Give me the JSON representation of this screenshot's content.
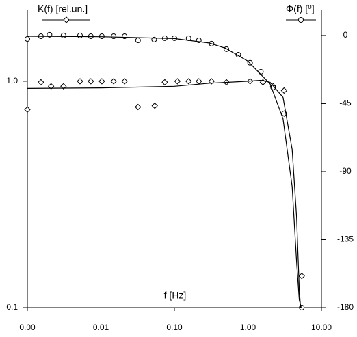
{
  "chart_data": {
    "type": "scatter",
    "x_label": "f [Hz]",
    "xscale": "log",
    "xlim": [
      0.001,
      10
    ],
    "xticks": [
      {
        "value": 0.001,
        "label": "0.00"
      },
      {
        "value": 0.01,
        "label": "0.01"
      },
      {
        "value": 0.1,
        "label": "0.10"
      },
      {
        "value": 1,
        "label": "1.00"
      },
      {
        "value": 10,
        "label": "10.00"
      }
    ],
    "yscale": "log",
    "ylim": [
      0.1,
      2.06
    ],
    "yticks": [
      0.1,
      {
        "value": 1,
        "label": "1.0"
      }
    ],
    "y2lim": [
      -180,
      16.7
    ],
    "y2ticks": [
      0,
      -45,
      -90,
      -135,
      -180
    ],
    "series": [
      {
        "name": "K(f) [rel.un.]",
        "marker": "diamond",
        "color": "#000000",
        "axis": "y",
        "x": [
          0.001,
          0.00153,
          0.0021,
          0.0031,
          0.0052,
          0.0073,
          0.0103,
          0.0149,
          0.021,
          0.032,
          0.054,
          0.074,
          0.11,
          0.156,
          0.215,
          0.32,
          0.51,
          1.07,
          1.6,
          2.2,
          3.1,
          3.1,
          5.4
        ],
        "values": [
          0.75,
          0.99,
          0.95,
          0.95,
          1.0,
          1.0,
          1.0,
          1.0,
          1.0,
          0.77,
          0.78,
          0.99,
          1.0,
          1.0,
          1.0,
          1.0,
          0.99,
          1.0,
          0.99,
          0.95,
          0.91,
          0.72,
          0.138
        ]
      },
      {
        "name": "Φ(f) [⁰]",
        "marker": "circle",
        "color": "#000000",
        "axis": "y2",
        "x": [
          0.001,
          0.00153,
          0.002,
          0.0031,
          0.0052,
          0.0073,
          0.0103,
          0.0149,
          0.021,
          0.032,
          0.053,
          0.074,
          0.1,
          0.156,
          0.215,
          0.32,
          0.51,
          0.74,
          1.07,
          1.5,
          2.2,
          3.1,
          5.4
        ],
        "values": [
          -2.3,
          -0.5,
          0.5,
          0,
          0,
          -0.5,
          -0.5,
          -0.5,
          -0.5,
          -3.2,
          -2.7,
          -1.8,
          -1.8,
          -1.8,
          -3.2,
          -5.4,
          -9,
          -12.7,
          -18,
          -24,
          -34.4,
          -51.6,
          -180
        ]
      },
      {
        "marker": "line",
        "color": "#000000",
        "axis": "y",
        "x": [
          0.001,
          0.01,
          0.1,
          0.3,
          1,
          1.5,
          2,
          3,
          4,
          4.6,
          5,
          5.2
        ],
        "values": [
          0.93,
          0.935,
          0.95,
          0.98,
          1.0,
          1.01,
          0.99,
          0.85,
          0.5,
          0.25,
          0.12,
          0.1
        ]
      },
      {
        "marker": "line",
        "color": "#000000",
        "axis": "y2",
        "x": [
          0.001,
          0.01,
          0.1,
          0.3,
          0.5,
          1,
          2,
          3,
          4,
          4.6,
          5,
          5.3
        ],
        "values": [
          -0.5,
          -0.8,
          -2,
          -5,
          -8.5,
          -17,
          -32,
          -55,
          -100,
          -150,
          -175,
          -180
        ]
      }
    ]
  }
}
